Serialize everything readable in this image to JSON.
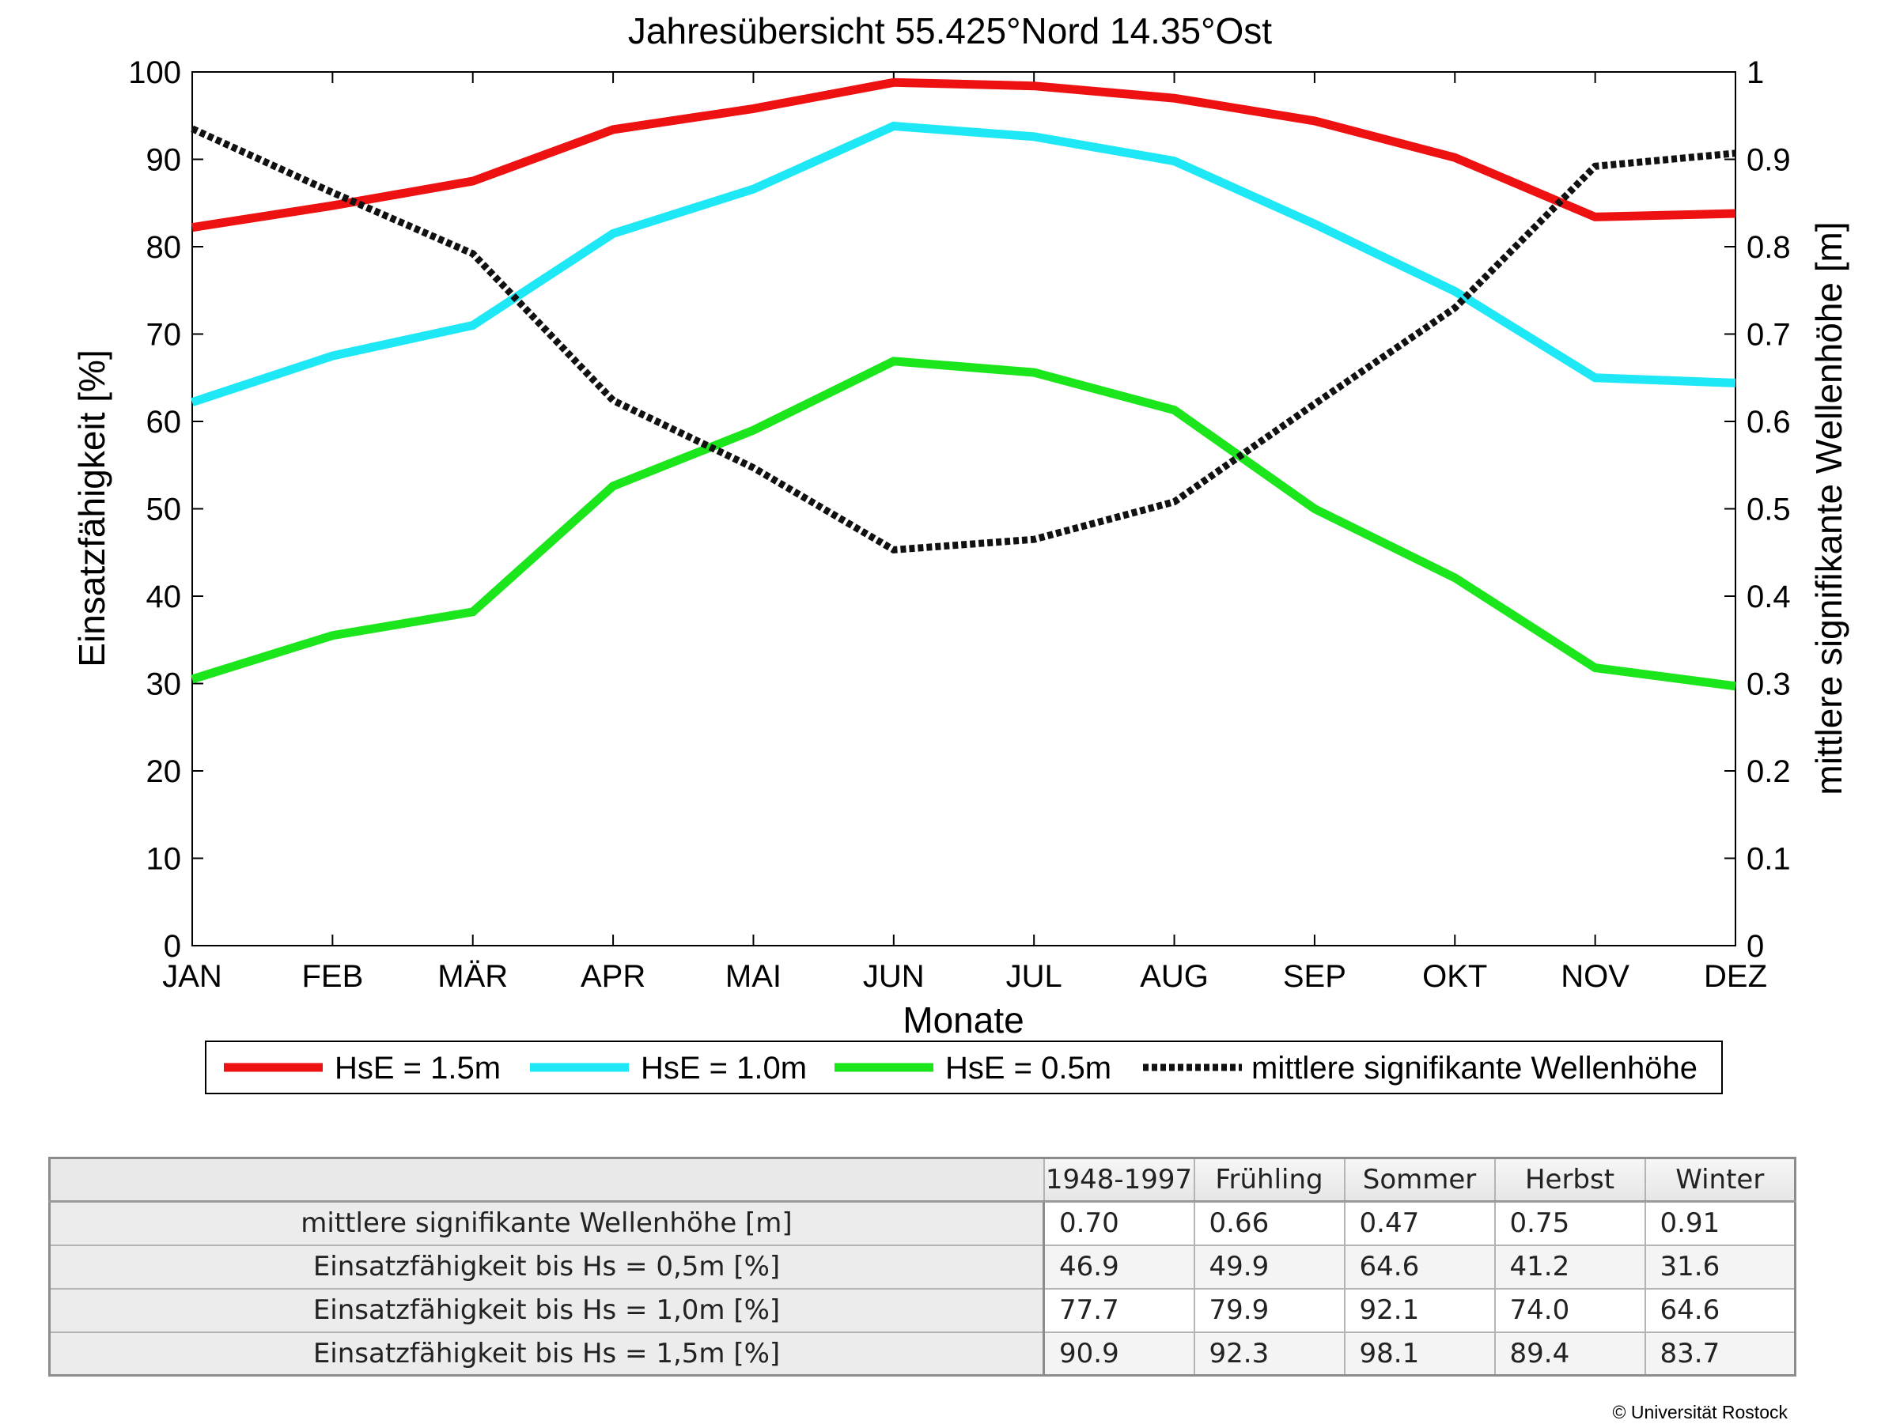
{
  "chart_data": {
    "type": "line",
    "title": "Jahresübersicht  55.425°Nord  14.35°Ost",
    "xlabel": "Monate",
    "ylabel": "Einsatzfähigkeit [%]",
    "y2label": "mittlere signifikante Wellenhöhe [m]",
    "categories": [
      "JAN",
      "FEB",
      "MÄR",
      "APR",
      "MAI",
      "JUN",
      "JUL",
      "AUG",
      "SEP",
      "OKT",
      "NOV",
      "DEZ"
    ],
    "ylim": [
      0,
      100
    ],
    "yticks": [
      "0",
      "10",
      "20",
      "30",
      "40",
      "50",
      "60",
      "70",
      "80",
      "90",
      "100"
    ],
    "y2lim": [
      0,
      1
    ],
    "y2ticks": [
      "0",
      "0.1",
      "0.2",
      "0.3",
      "0.4",
      "0.5",
      "0.6",
      "0.7",
      "0.8",
      "0.9",
      "1"
    ],
    "grid": false,
    "legend_position": "bottom",
    "series": [
      {
        "name": "HsE = 1.5m",
        "axis": "left",
        "color": "#ee1111",
        "style": "solid",
        "values": [
          82.2,
          84.7,
          87.5,
          93.4,
          95.8,
          98.8,
          98.4,
          97.0,
          94.4,
          90.2,
          83.4,
          83.8
        ]
      },
      {
        "name": "HsE = 1.0m",
        "axis": "left",
        "color": "#1ee8f5",
        "style": "solid",
        "values": [
          62.2,
          67.5,
          71.0,
          81.5,
          86.6,
          93.8,
          92.6,
          89.8,
          82.6,
          74.9,
          65.0,
          64.4
        ]
      },
      {
        "name": "HsE = 0.5m",
        "axis": "left",
        "color": "#1be61b",
        "style": "solid",
        "values": [
          30.5,
          35.5,
          38.2,
          52.6,
          59.0,
          66.9,
          65.6,
          61.3,
          50.0,
          42.1,
          31.8,
          29.7
        ]
      },
      {
        "name": "mittlere signifikante Wellenhöhe",
        "axis": "right",
        "color": "#111111",
        "style": "dotted",
        "values": [
          0.935,
          0.862,
          0.792,
          0.624,
          0.547,
          0.453,
          0.465,
          0.508,
          0.62,
          0.73,
          0.892,
          0.907
        ]
      }
    ]
  },
  "table": {
    "headers": [
      "1948-1997",
      "Frühling",
      "Sommer",
      "Herbst",
      "Winter"
    ],
    "rows": [
      {
        "label": "mittlere signifikante Wellenhöhe [m]",
        "values": [
          "0.70",
          "0.66",
          "0.47",
          "0.75",
          "0.91"
        ]
      },
      {
        "label": "Einsatzfähigkeit bis Hs = 0,5m [%]",
        "values": [
          "46.9",
          "49.9",
          "64.6",
          "41.2",
          "31.6"
        ]
      },
      {
        "label": "Einsatzfähigkeit bis Hs = 1,0m [%]",
        "values": [
          "77.7",
          "79.9",
          "92.1",
          "74.0",
          "64.6"
        ]
      },
      {
        "label": "Einsatzfähigkeit bis Hs = 1,5m [%]",
        "values": [
          "90.9",
          "92.3",
          "98.1",
          "89.4",
          "83.7"
        ]
      }
    ]
  },
  "copyright": "© Universität Rostock"
}
